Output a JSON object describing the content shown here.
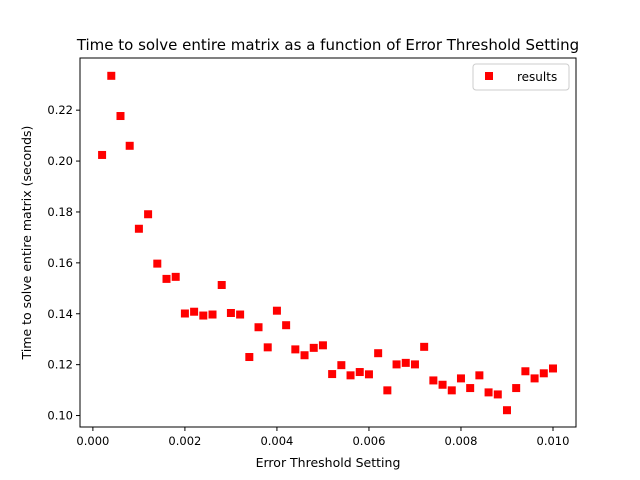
{
  "chart_data": {
    "type": "scatter",
    "title": "Time to solve entire matrix as a function of Error Threshold Setting",
    "xlabel": "Error Threshold Setting",
    "ylabel": "Time to solve entire matrix (seconds)",
    "xlim": [
      -0.00028,
      0.0105
    ],
    "ylim": [
      0.0955,
      0.2405
    ],
    "x_ticks": [
      0.0,
      0.002,
      0.004,
      0.006,
      0.008,
      0.01
    ],
    "x_tick_labels": [
      "0.000",
      "0.002",
      "0.004",
      "0.006",
      "0.008",
      "0.010"
    ],
    "y_ticks": [
      0.1,
      0.12,
      0.14,
      0.16,
      0.18,
      0.2,
      0.22
    ],
    "y_tick_labels": [
      "0.10",
      "0.12",
      "0.14",
      "0.16",
      "0.18",
      "0.20",
      "0.22"
    ],
    "grid": false,
    "legend": {
      "position": "top-right",
      "entries": [
        "results"
      ]
    },
    "series": [
      {
        "name": "results",
        "color": "#ff0000",
        "marker": "square",
        "x": [
          0.0002,
          0.0004,
          0.0006,
          0.0008,
          0.001,
          0.0012,
          0.0014,
          0.0016,
          0.0018,
          0.002,
          0.0022,
          0.0024,
          0.0026,
          0.0028,
          0.003,
          0.0032,
          0.0034,
          0.0036,
          0.0038,
          0.004,
          0.0042,
          0.0044,
          0.0046,
          0.0048,
          0.005,
          0.0052,
          0.0054,
          0.0056,
          0.0058,
          0.006,
          0.0062,
          0.0064,
          0.0066,
          0.0068,
          0.007,
          0.0072,
          0.0074,
          0.0076,
          0.0078,
          0.008,
          0.0082,
          0.0084,
          0.0086,
          0.0088,
          0.009,
          0.0092,
          0.0094,
          0.0096,
          0.0098,
          0.01
        ],
        "y": [
          0.2024,
          0.2335,
          0.2177,
          0.206,
          0.1734,
          0.1791,
          0.1597,
          0.1537,
          0.1545,
          0.1401,
          0.1408,
          0.1393,
          0.1397,
          0.1513,
          0.1403,
          0.1397,
          0.123,
          0.1347,
          0.1268,
          0.1412,
          0.1355,
          0.126,
          0.1237,
          0.1266,
          0.1276,
          0.1163,
          0.1198,
          0.1158,
          0.1171,
          0.1162,
          0.1245,
          0.1099,
          0.1201,
          0.1207,
          0.1201,
          0.127,
          0.1138,
          0.1121,
          0.1099,
          0.1146,
          0.1108,
          0.1158,
          0.1091,
          0.1083,
          0.1021,
          0.1108,
          0.1174,
          0.1146,
          0.1166,
          0.1185
        ]
      }
    ]
  }
}
